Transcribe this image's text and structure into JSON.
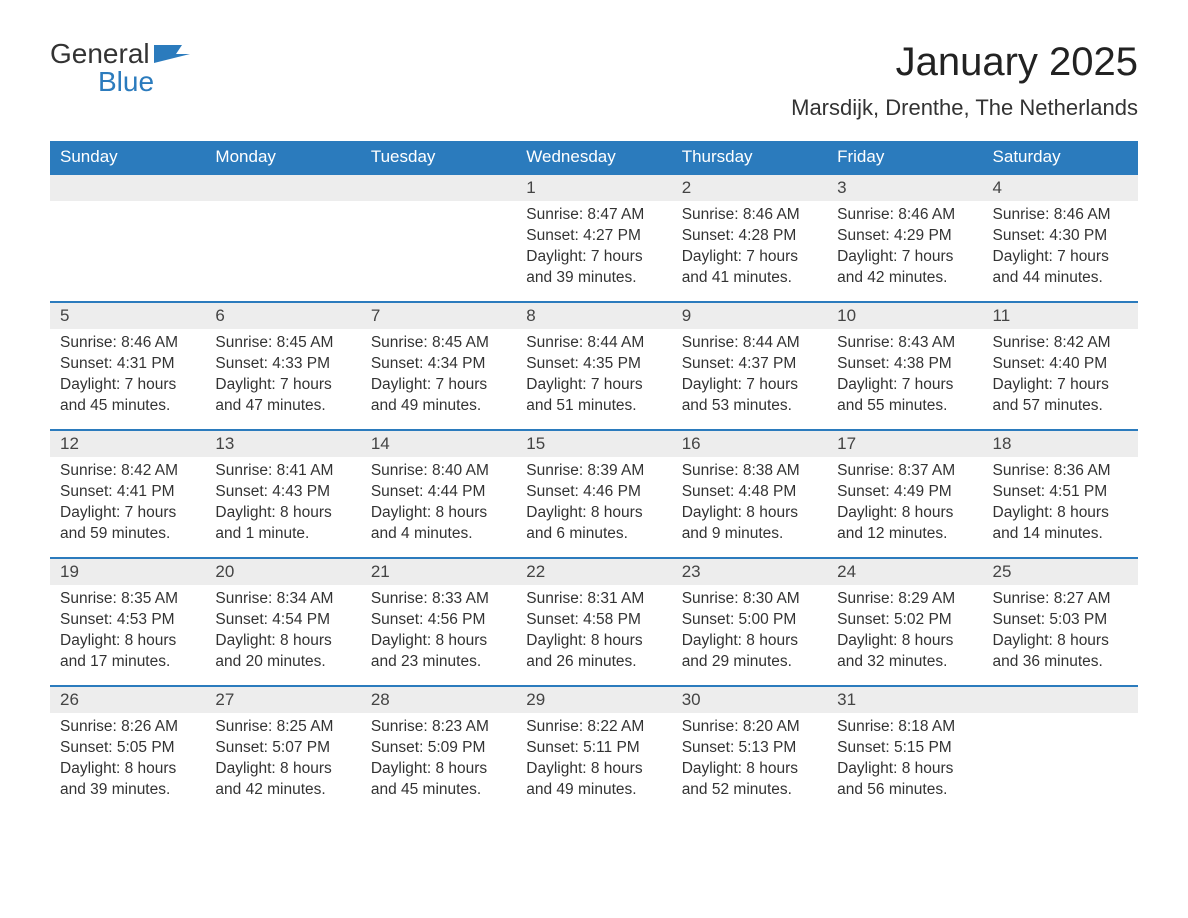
{
  "logo": {
    "line1": "General",
    "line2": "Blue"
  },
  "title": "January 2025",
  "location": "Marsdijk, Drenthe, The Netherlands",
  "colors": {
    "header_bg": "#2b7bbd",
    "header_text": "#ffffff",
    "daynum_bg": "#ededed",
    "row_border": "#2b7bbd",
    "body_text": "#333333",
    "background": "#ffffff"
  },
  "day_headers": [
    "Sunday",
    "Monday",
    "Tuesday",
    "Wednesday",
    "Thursday",
    "Friday",
    "Saturday"
  ],
  "labels": {
    "sunrise": "Sunrise:",
    "sunset": "Sunset:",
    "daylight": "Daylight:"
  },
  "weeks": [
    [
      {
        "day": "",
        "empty": true
      },
      {
        "day": "",
        "empty": true
      },
      {
        "day": "",
        "empty": true
      },
      {
        "day": "1",
        "sunrise": "8:47 AM",
        "sunset": "4:27 PM",
        "daylight": "7 hours and 39 minutes."
      },
      {
        "day": "2",
        "sunrise": "8:46 AM",
        "sunset": "4:28 PM",
        "daylight": "7 hours and 41 minutes."
      },
      {
        "day": "3",
        "sunrise": "8:46 AM",
        "sunset": "4:29 PM",
        "daylight": "7 hours and 42 minutes."
      },
      {
        "day": "4",
        "sunrise": "8:46 AM",
        "sunset": "4:30 PM",
        "daylight": "7 hours and 44 minutes."
      }
    ],
    [
      {
        "day": "5",
        "sunrise": "8:46 AM",
        "sunset": "4:31 PM",
        "daylight": "7 hours and 45 minutes."
      },
      {
        "day": "6",
        "sunrise": "8:45 AM",
        "sunset": "4:33 PM",
        "daylight": "7 hours and 47 minutes."
      },
      {
        "day": "7",
        "sunrise": "8:45 AM",
        "sunset": "4:34 PM",
        "daylight": "7 hours and 49 minutes."
      },
      {
        "day": "8",
        "sunrise": "8:44 AM",
        "sunset": "4:35 PM",
        "daylight": "7 hours and 51 minutes."
      },
      {
        "day": "9",
        "sunrise": "8:44 AM",
        "sunset": "4:37 PM",
        "daylight": "7 hours and 53 minutes."
      },
      {
        "day": "10",
        "sunrise": "8:43 AM",
        "sunset": "4:38 PM",
        "daylight": "7 hours and 55 minutes."
      },
      {
        "day": "11",
        "sunrise": "8:42 AM",
        "sunset": "4:40 PM",
        "daylight": "7 hours and 57 minutes."
      }
    ],
    [
      {
        "day": "12",
        "sunrise": "8:42 AM",
        "sunset": "4:41 PM",
        "daylight": "7 hours and 59 minutes."
      },
      {
        "day": "13",
        "sunrise": "8:41 AM",
        "sunset": "4:43 PM",
        "daylight": "8 hours and 1 minute."
      },
      {
        "day": "14",
        "sunrise": "8:40 AM",
        "sunset": "4:44 PM",
        "daylight": "8 hours and 4 minutes."
      },
      {
        "day": "15",
        "sunrise": "8:39 AM",
        "sunset": "4:46 PM",
        "daylight": "8 hours and 6 minutes."
      },
      {
        "day": "16",
        "sunrise": "8:38 AM",
        "sunset": "4:48 PM",
        "daylight": "8 hours and 9 minutes."
      },
      {
        "day": "17",
        "sunrise": "8:37 AM",
        "sunset": "4:49 PM",
        "daylight": "8 hours and 12 minutes."
      },
      {
        "day": "18",
        "sunrise": "8:36 AM",
        "sunset": "4:51 PM",
        "daylight": "8 hours and 14 minutes."
      }
    ],
    [
      {
        "day": "19",
        "sunrise": "8:35 AM",
        "sunset": "4:53 PM",
        "daylight": "8 hours and 17 minutes."
      },
      {
        "day": "20",
        "sunrise": "8:34 AM",
        "sunset": "4:54 PM",
        "daylight": "8 hours and 20 minutes."
      },
      {
        "day": "21",
        "sunrise": "8:33 AM",
        "sunset": "4:56 PM",
        "daylight": "8 hours and 23 minutes."
      },
      {
        "day": "22",
        "sunrise": "8:31 AM",
        "sunset": "4:58 PM",
        "daylight": "8 hours and 26 minutes."
      },
      {
        "day": "23",
        "sunrise": "8:30 AM",
        "sunset": "5:00 PM",
        "daylight": "8 hours and 29 minutes."
      },
      {
        "day": "24",
        "sunrise": "8:29 AM",
        "sunset": "5:02 PM",
        "daylight": "8 hours and 32 minutes."
      },
      {
        "day": "25",
        "sunrise": "8:27 AM",
        "sunset": "5:03 PM",
        "daylight": "8 hours and 36 minutes."
      }
    ],
    [
      {
        "day": "26",
        "sunrise": "8:26 AM",
        "sunset": "5:05 PM",
        "daylight": "8 hours and 39 minutes."
      },
      {
        "day": "27",
        "sunrise": "8:25 AM",
        "sunset": "5:07 PM",
        "daylight": "8 hours and 42 minutes."
      },
      {
        "day": "28",
        "sunrise": "8:23 AM",
        "sunset": "5:09 PM",
        "daylight": "8 hours and 45 minutes."
      },
      {
        "day": "29",
        "sunrise": "8:22 AM",
        "sunset": "5:11 PM",
        "daylight": "8 hours and 49 minutes."
      },
      {
        "day": "30",
        "sunrise": "8:20 AM",
        "sunset": "5:13 PM",
        "daylight": "8 hours and 52 minutes."
      },
      {
        "day": "31",
        "sunrise": "8:18 AM",
        "sunset": "5:15 PM",
        "daylight": "8 hours and 56 minutes."
      },
      {
        "day": "",
        "empty": true
      }
    ]
  ]
}
